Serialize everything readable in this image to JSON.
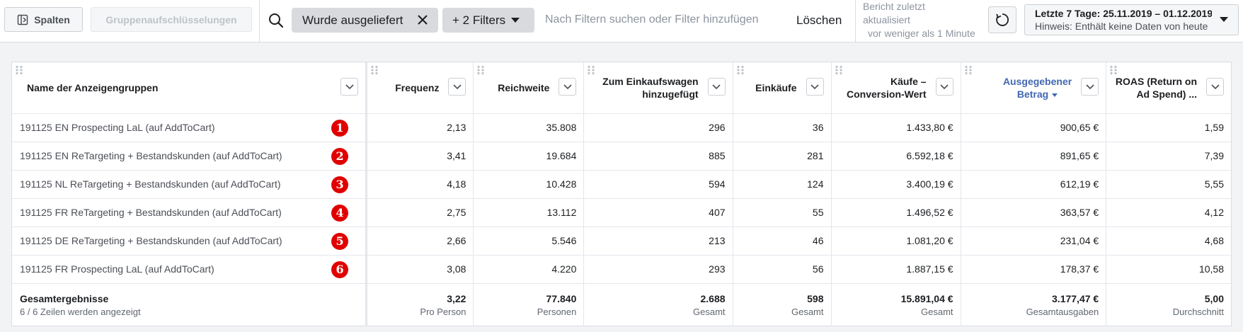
{
  "toolbar": {
    "columns_label": "Spalten",
    "breakdown_label": "Gruppenaufschlüsselungen",
    "filter_chip": "Wurde ausgeliefert",
    "more_filters": "+ 2 Filters",
    "search_placeholder": "Nach Filtern suchen oder Filter hinzufügen",
    "clear_label": "Löschen",
    "report_updated_l1": "Bericht zuletzt",
    "report_updated_l2": "aktualisiert",
    "report_updated_l3": "vor weniger als 1 Minute",
    "date_range": "Letzte 7 Tage: 25.11.2019 – 01.12.2019",
    "date_hint": "Hinweis: Enthält keine Daten von heute"
  },
  "table": {
    "headers": [
      {
        "l1": "Name der Anzeigengruppen",
        "l2": ""
      },
      {
        "l1": "Frequenz",
        "l2": ""
      },
      {
        "l1": "Reichweite",
        "l2": ""
      },
      {
        "l1": "Zum Einkaufswagen",
        "l2": "hinzugefügt"
      },
      {
        "l1": "Einkäufe",
        "l2": ""
      },
      {
        "l1": "Käufe –",
        "l2": "Conversion-Wert"
      },
      {
        "l1": "Ausgegebener",
        "l2": "Betrag"
      },
      {
        "l1": "ROAS (Return on",
        "l2": "Ad Spend) ..."
      }
    ],
    "rows": [
      {
        "name": "191125 EN Prospecting LaL (auf AddToCart)",
        "badge": "1",
        "frequenz": "2,13",
        "reichweite": "35.808",
        "warenkorb": "296",
        "einkaeufe": "36",
        "conversion": "1.433,80 €",
        "betrag": "900,65 €",
        "roas": "1,59"
      },
      {
        "name": "191125 EN ReTargeting + Bestandskunden (auf AddToCart)",
        "badge": "2",
        "frequenz": "3,41",
        "reichweite": "19.684",
        "warenkorb": "885",
        "einkaeufe": "281",
        "conversion": "6.592,18 €",
        "betrag": "891,65 €",
        "roas": "7,39"
      },
      {
        "name": "191125 NL ReTargeting + Bestandskunden (auf AddToCart)",
        "badge": "3",
        "frequenz": "4,18",
        "reichweite": "10.428",
        "warenkorb": "594",
        "einkaeufe": "124",
        "conversion": "3.400,19 €",
        "betrag": "612,19 €",
        "roas": "5,55"
      },
      {
        "name": "191125 FR ReTargeting + Bestandskunden (auf AddToCart)",
        "badge": "4",
        "frequenz": "2,75",
        "reichweite": "13.112",
        "warenkorb": "407",
        "einkaeufe": "55",
        "conversion": "1.496,52 €",
        "betrag": "363,57 €",
        "roas": "4,12"
      },
      {
        "name": "191125 DE ReTargeting + Bestandskunden (auf AddToCart)",
        "badge": "5",
        "frequenz": "2,66",
        "reichweite": "5.546",
        "warenkorb": "213",
        "einkaeufe": "46",
        "conversion": "1.081,20 €",
        "betrag": "231,04 €",
        "roas": "4,68"
      },
      {
        "name": "191125 FR Prospecting LaL (auf AddToCart)",
        "badge": "6",
        "frequenz": "3,08",
        "reichweite": "4.220",
        "warenkorb": "293",
        "einkaeufe": "56",
        "conversion": "1.887,15 €",
        "betrag": "178,37 €",
        "roas": "10,58"
      }
    ],
    "totals": {
      "title": "Gesamtergebnisse",
      "subtitle": "6 / 6 Zeilen werden angezeigt",
      "frequenz": {
        "value": "3,22",
        "sub": "Pro Person"
      },
      "reichweite": {
        "value": "77.840",
        "sub": "Personen"
      },
      "warenkorb": {
        "value": "2.688",
        "sub": "Gesamt"
      },
      "einkaeufe": {
        "value": "598",
        "sub": "Gesamt"
      },
      "conversion": {
        "value": "15.891,04 €",
        "sub": "Gesamt"
      },
      "betrag": {
        "value": "3.177,47 €",
        "sub": "Gesamtausgaben"
      },
      "roas": {
        "value": "5,00",
        "sub": "Durchschnitt"
      }
    }
  },
  "colors": {
    "accent": "#4267b2",
    "badge": "#e00000"
  }
}
